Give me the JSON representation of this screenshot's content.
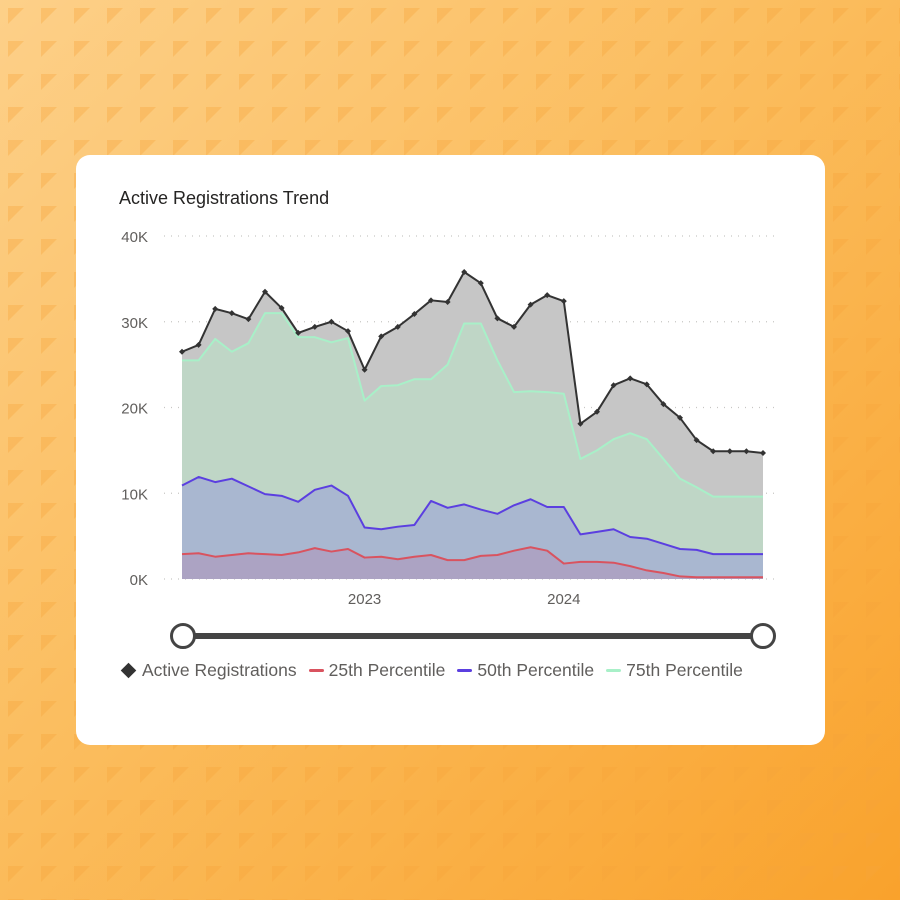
{
  "chart_data": {
    "type": "area",
    "title": "Active Registrations Trend",
    "xlabel": "",
    "ylabel": "",
    "ylim": [
      0,
      40000
    ],
    "y_ticks": [
      "0K",
      "10K",
      "20K",
      "30K",
      "40K"
    ],
    "x_ticks": [
      "2023",
      "2024"
    ],
    "grid": true,
    "legend": "bottom",
    "x": [
      "2022-02",
      "2022-03",
      "2022-04",
      "2022-05",
      "2022-06",
      "2022-07",
      "2022-08",
      "2022-09",
      "2022-10",
      "2022-11",
      "2022-12",
      "2023-01",
      "2023-02",
      "2023-03",
      "2023-04",
      "2023-05",
      "2023-06",
      "2023-07",
      "2023-08",
      "2023-09",
      "2023-10",
      "2023-11",
      "2023-12",
      "2024-01",
      "2024-02",
      "2024-03",
      "2024-04",
      "2024-05",
      "2024-06",
      "2024-07",
      "2024-08",
      "2024-09",
      "2024-10",
      "2024-11",
      "2024-12",
      "2025-01"
    ],
    "series": [
      {
        "name": "Active Registrations",
        "color": "#333333",
        "fill": "#c6c6c6",
        "values": [
          26500,
          27300,
          31500,
          31000,
          30300,
          33500,
          31600,
          28700,
          29400,
          30000,
          28900,
          24400,
          28300,
          29400,
          30900,
          32500,
          32300,
          35800,
          34500,
          30400,
          29400,
          32000,
          33100,
          32400,
          18100,
          19500,
          22600,
          23400,
          22700,
          20400,
          18800,
          16200,
          14900,
          14900,
          14900,
          14700
        ]
      },
      {
        "name": "75th Percentile",
        "color": "#a8f0c8",
        "fill": "#bfd6c6",
        "values": [
          25500,
          25500,
          28000,
          26500,
          27500,
          31000,
          31000,
          28200,
          28200,
          27600,
          28100,
          20800,
          22500,
          22600,
          23300,
          23300,
          25000,
          29800,
          29800,
          25500,
          21800,
          21900,
          21800,
          21600,
          14000,
          15000,
          16300,
          17000,
          16300,
          14000,
          11700,
          10700,
          9600,
          9600,
          9600,
          9600
        ]
      },
      {
        "name": "50th Percentile",
        "color": "#5b3fe0",
        "fill": "#a9b7d0",
        "values": [
          10900,
          11900,
          11300,
          11700,
          10800,
          9900,
          9700,
          9000,
          10400,
          10900,
          9700,
          6000,
          5800,
          6100,
          6300,
          9100,
          8300,
          8700,
          8100,
          7600,
          8600,
          9300,
          8400,
          8400,
          5200,
          5500,
          5800,
          4900,
          4700,
          4100,
          3500,
          3400,
          2900,
          2900,
          2900,
          2900
        ]
      },
      {
        "name": "25th Percentile",
        "color": "#d9535f",
        "fill": "#aca3c3",
        "values": [
          2900,
          3000,
          2600,
          2800,
          3000,
          2900,
          2800,
          3100,
          3600,
          3200,
          3500,
          2500,
          2600,
          2300,
          2600,
          2800,
          2200,
          2200,
          2700,
          2800,
          3300,
          3700,
          3300,
          1800,
          2000,
          2000,
          1900,
          1500,
          1000,
          700,
          300,
          200,
          200,
          200,
          200,
          200
        ]
      }
    ],
    "slider_range": [
      0,
      1
    ]
  }
}
